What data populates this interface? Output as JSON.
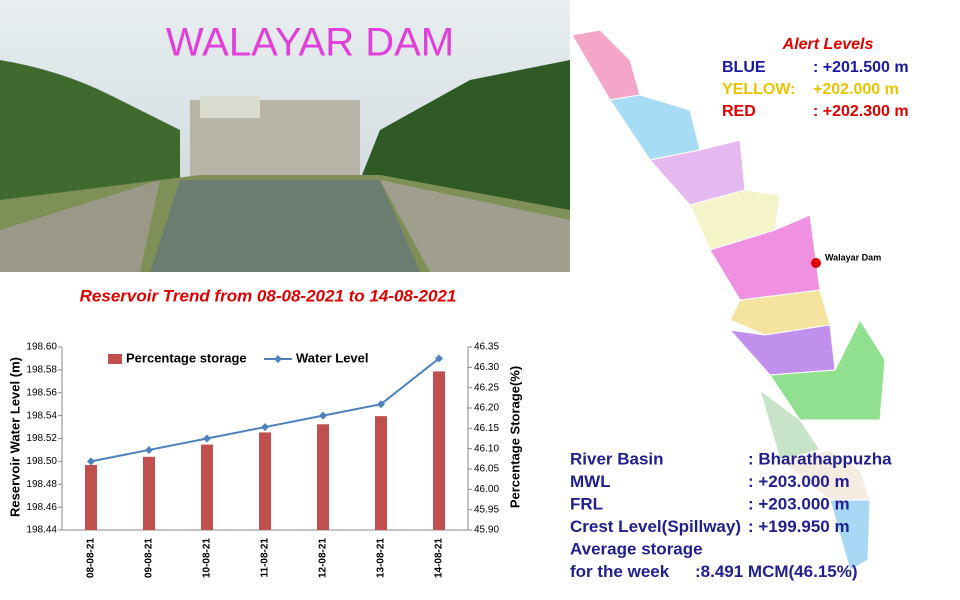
{
  "header": {
    "title": "WALAYAR DAM"
  },
  "alert_levels": {
    "title": "Alert Levels",
    "levels": [
      {
        "name": "BLUE",
        "value": ": +201.500 m",
        "color": "#1a1aa0"
      },
      {
        "name": "YELLOW:",
        "value": "+202.000 m",
        "color": "#e8c400"
      },
      {
        "name": "RED",
        "value": ": +202.300 m",
        "color": "#e00000"
      }
    ]
  },
  "map": {
    "marker_label": "Walayar Dam"
  },
  "details": [
    {
      "name": "River Basin",
      "value": ": Bharathappuzha"
    },
    {
      "name": "MWL",
      "value": ": +203.000 m"
    },
    {
      "name": "FRL",
      "value": ": +203.000 m"
    },
    {
      "name": "Crest Level(Spillway)",
      "value": ": +199.950 m"
    },
    {
      "name": "Average storage",
      "value": null
    },
    {
      "name": "for the week",
      "value": ":8.491 MCM(46.15%)"
    }
  ],
  "chart_data": {
    "type": "bar",
    "title": "Reservoir Trend from 08-08-2021 to 14-08-2021",
    "ylabel": "Reservoir Water Level (m)",
    "y2label": "Percentage Storage(%)",
    "categories": [
      "08-08-21",
      "09-08-21",
      "10-08-21",
      "11-08-21",
      "12-08-21",
      "13-08-21",
      "14-08-21"
    ],
    "series": [
      {
        "name": "Percentage storage",
        "type": "bar",
        "axis": "y2",
        "color": "#c0504d",
        "values": [
          46.06,
          46.08,
          46.11,
          46.14,
          46.16,
          46.18,
          46.29
        ]
      },
      {
        "name": "Water Level",
        "type": "line",
        "color": "#4f81bd",
        "values": [
          198.5,
          198.51,
          198.52,
          198.53,
          198.54,
          198.55,
          198.59
        ]
      }
    ],
    "ylim": [
      198.44,
      198.6
    ],
    "yticks": [
      198.44,
      198.46,
      198.48,
      {
        "value": 198.5,
        "label": "198.50"
      },
      198.52,
      198.54,
      198.56,
      198.58,
      {
        "value": 198.6,
        "label": "198.60"
      }
    ],
    "y2lim": [
      45.9,
      46.35
    ],
    "y2ticks": [
      {
        "value": 45.9,
        "label": "45.90"
      },
      45.95,
      {
        "value": 46.0,
        "label": "46.00"
      },
      46.05,
      {
        "value": 46.1,
        "label": "46.10"
      },
      46.15,
      {
        "value": 46.2,
        "label": "46.20"
      },
      46.25,
      {
        "value": 46.3,
        "label": "46.30"
      },
      46.35
    ],
    "legend": "top"
  }
}
